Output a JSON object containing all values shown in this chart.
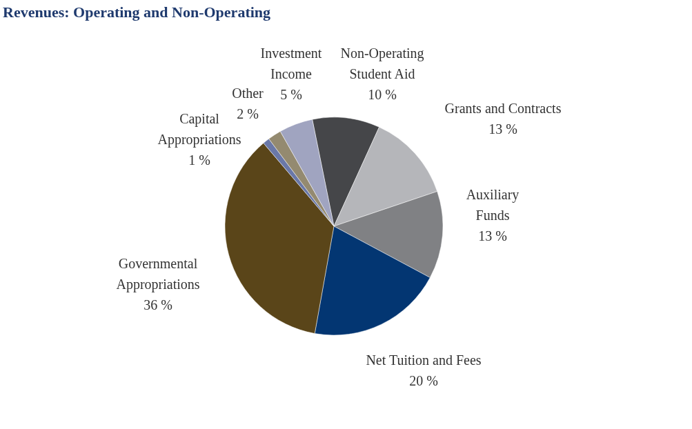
{
  "chart_data": {
    "type": "pie",
    "title": "Revenues: Operating and Non-Operating",
    "categories": [
      "Non-Operating Student Aid",
      "Grants and Contracts",
      "Auxiliary Funds",
      "Net Tuition and Fees",
      "Governmental Appropriations",
      "Capital Appropriations",
      "Other",
      "Investment Income"
    ],
    "values": [
      10,
      13,
      13,
      20,
      36,
      1,
      2,
      5
    ],
    "colors": [
      "#454649",
      "#b5b6ba",
      "#808184",
      "#033672",
      "#5a4519",
      "#6a78a8",
      "#948a70",
      "#a0a4c0"
    ],
    "value_labels": [
      "10 %",
      "13 %",
      "13 %",
      "20 %",
      "36 %",
      "1 %",
      "2 %",
      "5 %"
    ]
  }
}
